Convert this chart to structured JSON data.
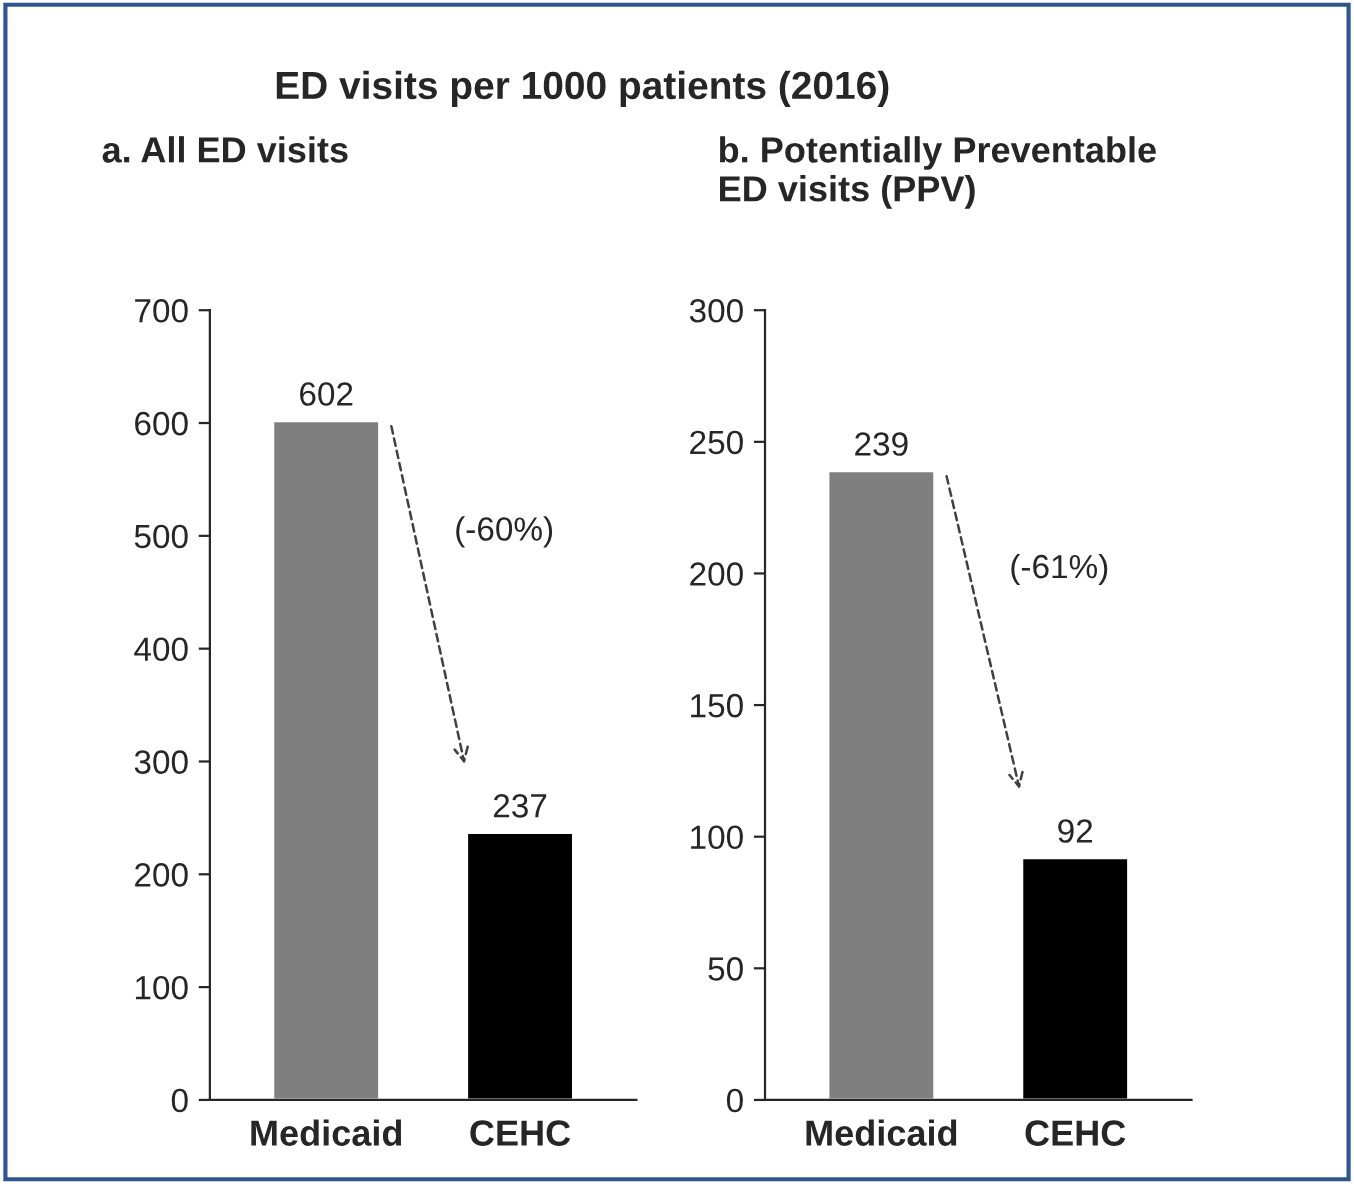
{
  "chart_data": [
    {
      "type": "bar",
      "title": "ED visits per 1000 patients (2016)",
      "subtitle": "a. All ED visits",
      "categories": [
        "Medicaid",
        "CEHC"
      ],
      "values": [
        602,
        237
      ],
      "colors": [
        "#7f7f7f",
        "#000000"
      ],
      "ylim": [
        0,
        700
      ],
      "yticks": [
        0,
        100,
        200,
        300,
        400,
        500,
        600,
        700
      ],
      "data_labels": true,
      "annotations": [
        "(-60%)"
      ]
    },
    {
      "type": "bar",
      "subtitle": "b. Potentially Preventable\nED visits (PPV)",
      "categories": [
        "Medicaid",
        "CEHC"
      ],
      "values": [
        239,
        92
      ],
      "colors": [
        "#7f7f7f",
        "#000000"
      ],
      "ylim": [
        0,
        300
      ],
      "yticks": [
        0,
        50,
        100,
        150,
        200,
        250,
        300
      ],
      "data_labels": true,
      "annotations": [
        "(-61%)"
      ]
    }
  ]
}
